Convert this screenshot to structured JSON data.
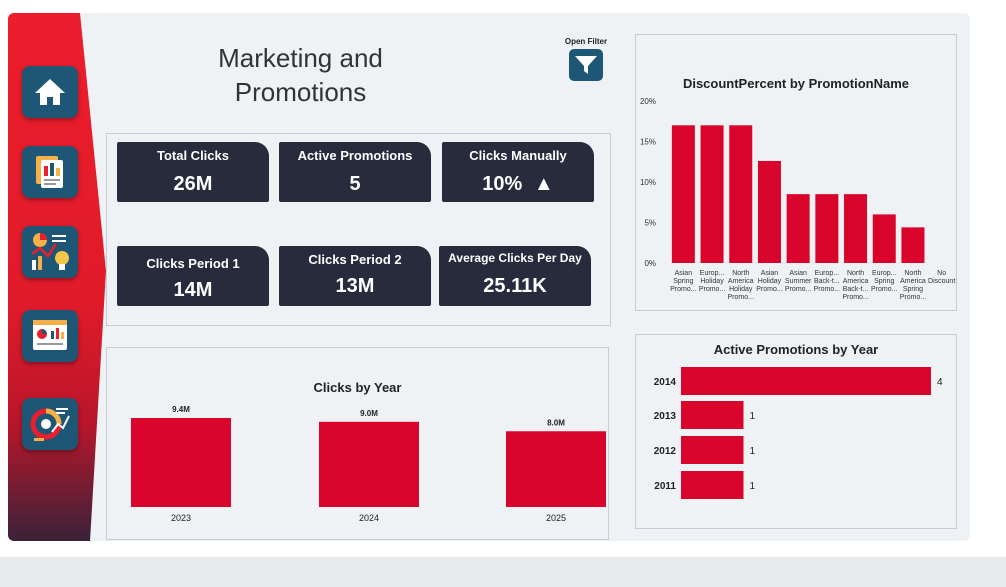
{
  "page": {
    "title_line1": "Marketing and",
    "title_line2": "Promotions"
  },
  "filter": {
    "label": "Open Filter"
  },
  "nav": [
    {
      "name": "home-icon"
    },
    {
      "name": "report-icon"
    },
    {
      "name": "analytics-icon"
    },
    {
      "name": "dashboard-icon"
    },
    {
      "name": "insights-icon"
    }
  ],
  "kpis": [
    {
      "title": "Total Clicks",
      "value": "26M"
    },
    {
      "title": "Active Promotions",
      "value": "5"
    },
    {
      "title": "Clicks Manually",
      "value": "10%",
      "trend": "▲"
    },
    {
      "title": "Clicks Period 1",
      "value": "14M"
    },
    {
      "title": "Clicks Period 2",
      "value": "13M"
    },
    {
      "title": "Average Clicks Per Day",
      "value": "25.11K"
    }
  ],
  "colors": {
    "accent": "#d9042b",
    "kpi_bg": "#272b3c",
    "nav_bg": "#1d5775",
    "sidebar_red": "#ec1d2c"
  },
  "chart_data": [
    {
      "type": "bar",
      "title": "DiscountPercent by PromotionName",
      "categories": [
        [
          "Asian",
          "Spring",
          "Promo..."
        ],
        [
          "Europ...",
          "Holiday",
          "Promo..."
        ],
        [
          "North",
          "America",
          "Holiday",
          "Promo..."
        ],
        [
          "Asian",
          "Holiday",
          "Promo..."
        ],
        [
          "Asian",
          "Summer",
          "Promo..."
        ],
        [
          "Europ...",
          "Back-t...",
          "Promo..."
        ],
        [
          "North",
          "America",
          "Back-t...",
          "Promo..."
        ],
        [
          "Europ...",
          "Spring",
          "Promo..."
        ],
        [
          "North",
          "America",
          "Spring",
          "Promo..."
        ],
        [
          "No",
          "Discount"
        ]
      ],
      "values": [
        17,
        17,
        17,
        12.6,
        8.5,
        8.5,
        8.5,
        6,
        4.4,
        0
      ],
      "yticks": [
        "0%",
        "5%",
        "10%",
        "15%",
        "20%"
      ],
      "ylim": [
        0,
        20
      ]
    },
    {
      "type": "bar",
      "title": "Clicks by Year",
      "categories": [
        "2023",
        "2024",
        "2025"
      ],
      "values": [
        9.4,
        9.0,
        8.0
      ],
      "labels": [
        "9.4M",
        "9.0M",
        "8.0M"
      ],
      "ylim": [
        0,
        9.4
      ]
    },
    {
      "type": "bar",
      "orientation": "horizontal",
      "title": "Active Promotions by Year",
      "categories": [
        "2014",
        "2013",
        "2012",
        "2011"
      ],
      "values": [
        4,
        1,
        1,
        1
      ],
      "labels": [
        "4",
        "1",
        "1",
        "1"
      ],
      "xlim": [
        0,
        4
      ]
    }
  ]
}
